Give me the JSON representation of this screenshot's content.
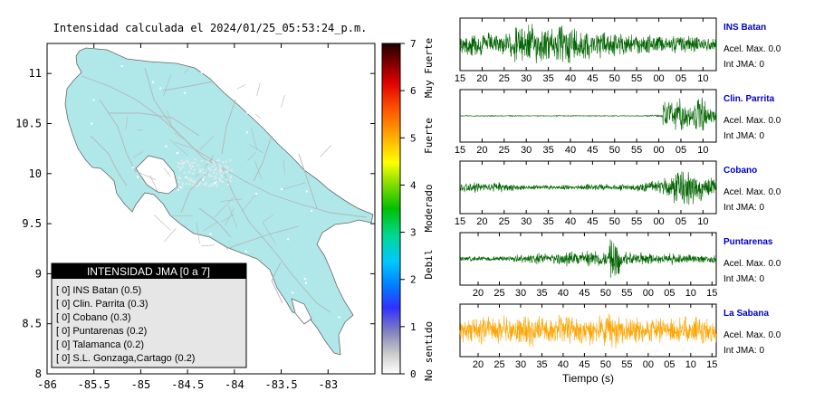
{
  "map": {
    "title": "Intensidad calculada el 2024/01/25_05:53:24_p.m.",
    "x_ticks": [
      "-86",
      "-85.5",
      "-85",
      "-84.5",
      "-84",
      "-83.5",
      "-83"
    ],
    "y_ticks": [
      "11",
      "10.5",
      "10",
      "9.5",
      "9",
      "8.5",
      "8"
    ],
    "xlim": [
      -86,
      -82.5
    ],
    "ylim": [
      8,
      11.3
    ],
    "land_color": "#b0e8ea",
    "road_color": "#b5b5b5",
    "legend": {
      "title": "INTENSIDAD JMA [0 a 7]",
      "items": [
        "[ 0]  INS Batan (0.5)",
        "[ 0]  Clin. Parrita (0.3)",
        "[ 0]  Cobano (0.3)",
        "[ 0]  Puntarenas (0.2)",
        "[ 0]  Talamanca (0.2)",
        "[ 0]  S.L. Gonzaga,Cartago (0.2)"
      ]
    }
  },
  "colorbar": {
    "ticks": [
      "0",
      "1",
      "2",
      "3",
      "4",
      "5",
      "6",
      "7"
    ],
    "labels": [
      "No sentido",
      "Debil",
      "Moderado",
      "Fuerte",
      "Muy Fuerte"
    ],
    "range": [
      0,
      7
    ]
  },
  "chart_data": [
    {
      "type": "line",
      "name": "INS Batan",
      "accel_label": "Acel. Max. 0.0",
      "int_label": "Int JMA: 0",
      "color": "#006400",
      "x_ticks": [
        "15",
        "20",
        "25",
        "30",
        "35",
        "40",
        "45",
        "50",
        "55",
        "00",
        "05",
        "10"
      ],
      "envelope": [
        0.45,
        0.6,
        0.55,
        0.5,
        0.55,
        0.9,
        0.95,
        0.85,
        0.8,
        0.9,
        0.95,
        0.8,
        0.7,
        0.65,
        0.55,
        0.5,
        0.45,
        0.45,
        0.4,
        0.35,
        0.45,
        0.4,
        0.35,
        0.3
      ]
    },
    {
      "type": "line",
      "name": "Clin. Parrita",
      "accel_label": "Acel. Max. 0.0",
      "int_label": "Int JMA: 0",
      "color": "#006400",
      "x_ticks": [
        "15",
        "20",
        "25",
        "30",
        "35",
        "40",
        "45",
        "50",
        "55",
        "00",
        "05",
        "10"
      ],
      "envelope": [
        0.02,
        0.02,
        0.02,
        0.02,
        0.02,
        0.02,
        0.02,
        0.02,
        0.02,
        0.02,
        0.02,
        0.02,
        0.02,
        0.02,
        0.02,
        0.02,
        0.02,
        0.03,
        0.05,
        0.7,
        0.8,
        0.55,
        0.9,
        0.45
      ]
    },
    {
      "type": "line",
      "name": "Cobano",
      "accel_label": "Acel. Max. 0.0",
      "int_label": "Int JMA: 0",
      "color": "#006400",
      "x_ticks": [
        "15",
        "20",
        "25",
        "30",
        "35",
        "40",
        "45",
        "50",
        "55",
        "00",
        "05",
        "10"
      ],
      "envelope": [
        0.2,
        0.25,
        0.2,
        0.25,
        0.2,
        0.15,
        0.1,
        0.1,
        0.1,
        0.12,
        0.1,
        0.15,
        0.15,
        0.15,
        0.12,
        0.15,
        0.2,
        0.25,
        0.3,
        0.5,
        0.95,
        0.85,
        0.6,
        0.45
      ]
    },
    {
      "type": "line",
      "name": "Puntarenas",
      "accel_label": "Acel. Max. 0.0",
      "int_label": "Int JMA: 0",
      "color": "#006400",
      "x_ticks": [
        "20",
        "25",
        "30",
        "35",
        "40",
        "45",
        "50",
        "55",
        "00",
        "05",
        "10",
        "15"
      ],
      "envelope": [
        0.1,
        0.12,
        0.1,
        0.12,
        0.15,
        0.2,
        0.2,
        0.3,
        0.25,
        0.3,
        0.35,
        0.4,
        0.45,
        0.35,
        0.95,
        0.35,
        0.3,
        0.3,
        0.25,
        0.25,
        0.2,
        0.2,
        0.2,
        0.2
      ]
    },
    {
      "type": "line",
      "name": "La Sabana",
      "accel_label": "Acel. Max. 0.0",
      "int_label": "Int JMA: 0",
      "color": "#ffa500",
      "x_ticks": [
        "20",
        "25",
        "30",
        "35",
        "40",
        "45",
        "50",
        "55",
        "00",
        "05",
        "10",
        "15"
      ],
      "xlabel": "Tiempo (s)",
      "envelope": [
        0.55,
        0.6,
        0.65,
        0.6,
        0.65,
        0.7,
        0.7,
        0.65,
        0.6,
        0.65,
        0.7,
        0.65,
        0.75,
        0.7,
        0.9,
        0.65,
        0.6,
        0.65,
        0.6,
        0.55,
        0.6,
        0.65,
        0.6,
        0.55
      ]
    }
  ]
}
